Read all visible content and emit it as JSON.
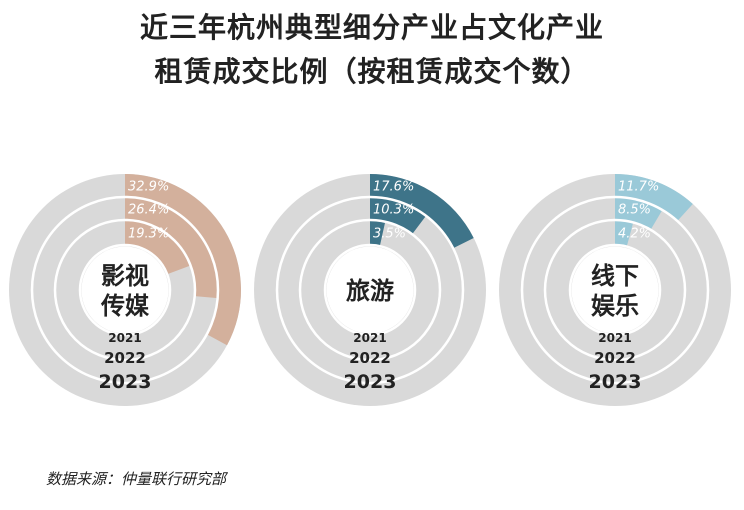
{
  "title_line1": "近三年杭州典型细分产业占文化产业",
  "title_line2": "租赁成交比例（按租赁成交个数）",
  "source": "数据来源：仲量联行研究部",
  "colors": {
    "track": "#d9d9d9",
    "ring_border": "#ffffff",
    "text": "#222222"
  },
  "chart_data": [
    {
      "type": "radial-bar",
      "center_label": [
        "影视",
        "传媒"
      ],
      "color": "#d3b09c",
      "label_color": "#ffffff",
      "rings": [
        {
          "year": "2021",
          "value": 19.3,
          "label": "19.3%"
        },
        {
          "year": "2022",
          "value": 26.4,
          "label": "26.4%"
        },
        {
          "year": "2023",
          "value": 32.9,
          "label": "32.9%"
        }
      ]
    },
    {
      "type": "radial-bar",
      "center_label": [
        "旅游"
      ],
      "color": "#3e7489",
      "label_color": "#ffffff",
      "rings": [
        {
          "year": "2021",
          "value": 3.5,
          "label": "3.5%"
        },
        {
          "year": "2022",
          "value": 10.3,
          "label": "10.3%"
        },
        {
          "year": "2023",
          "value": 17.6,
          "label": "17.6%"
        }
      ]
    },
    {
      "type": "radial-bar",
      "center_label": [
        "线下",
        "娱乐"
      ],
      "color": "#9ac9d8",
      "label_color": "#ffffff",
      "rings": [
        {
          "year": "2021",
          "value": 4.2,
          "label": "4.2%"
        },
        {
          "year": "2022",
          "value": 8.5,
          "label": "8.5%"
        },
        {
          "year": "2023",
          "value": 11.7,
          "label": "11.7%"
        }
      ]
    }
  ]
}
